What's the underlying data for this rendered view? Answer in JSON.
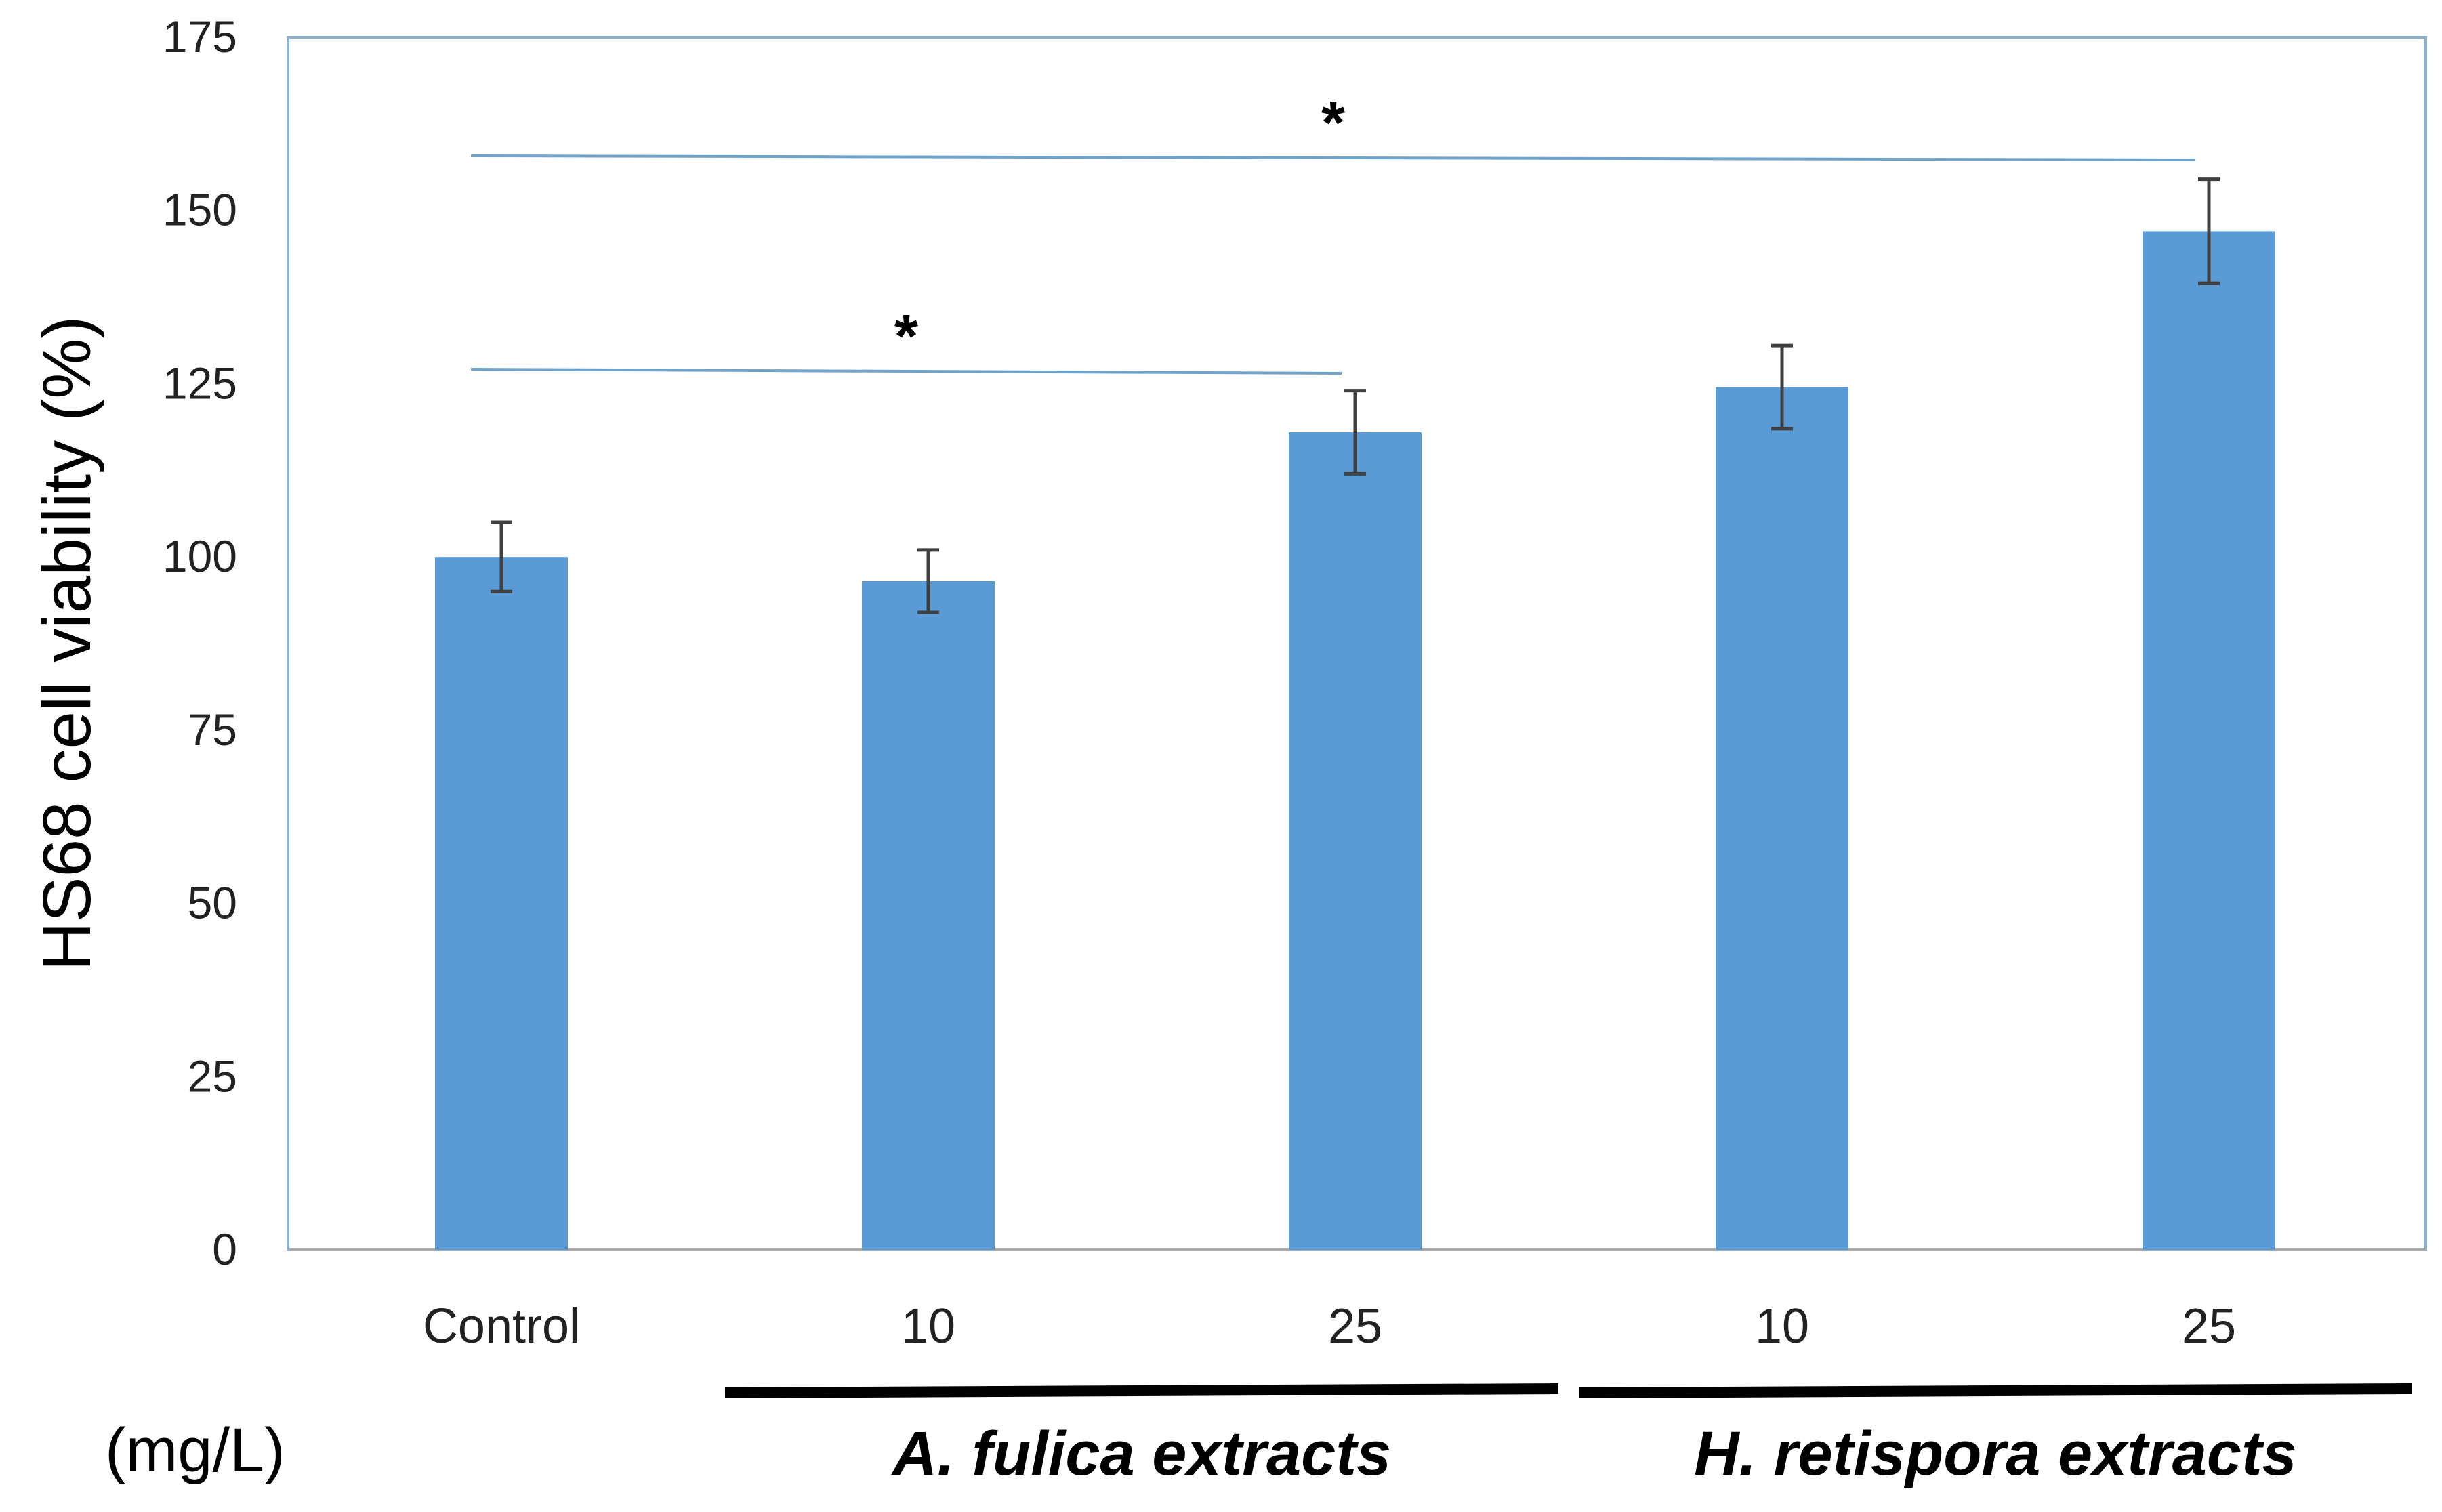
{
  "chart_data": {
    "type": "bar",
    "title": "",
    "xlabel": "",
    "ylabel": "HS68 cell viability (%)",
    "ylim": [
      0,
      175
    ],
    "yticks": [
      0,
      25,
      50,
      75,
      100,
      125,
      150,
      175
    ],
    "grid": false,
    "categories": [
      "Control",
      "10",
      "25",
      "10",
      "25"
    ],
    "values": [
      100,
      96.5,
      118,
      124.5,
      147
    ],
    "errors": [
      5,
      4.5,
      6,
      6,
      7.5
    ],
    "bar_color": "#5b9bd5",
    "axis_color": "#8cb4d2",
    "error_color": "#404040",
    "unit_label": "(mg/L)",
    "groups": [
      {
        "label": "A. fulica extracts",
        "categories": [
          1,
          2
        ]
      },
      {
        "label": "H. retispora extracts",
        "categories": [
          3,
          4
        ]
      }
    ],
    "significance": [
      {
        "from": 0,
        "to": 2,
        "label": "*"
      },
      {
        "from": 0,
        "to": 4,
        "label": "*"
      }
    ]
  }
}
